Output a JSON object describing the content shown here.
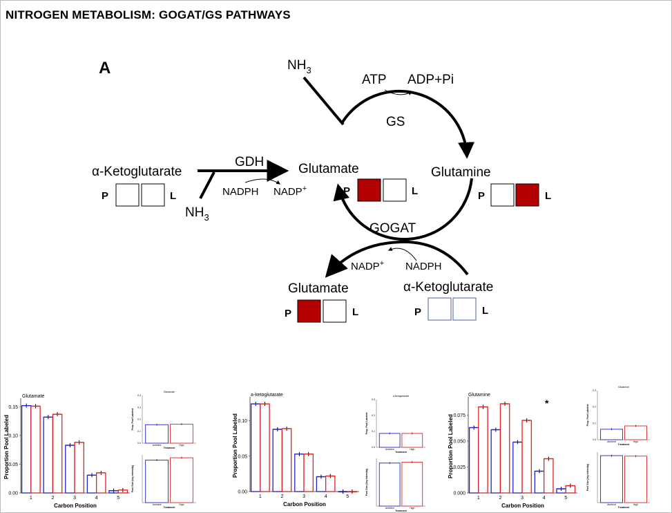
{
  "header": {
    "title": "NITROGEN METABOLISM: GOGAT/GS PATHWAYS"
  },
  "diagram": {
    "panel_label": "A",
    "nh3_top": "NH3",
    "nh3_left": "NH3",
    "atp": "ATP",
    "adp": "ADP+Pi",
    "gs": "GS",
    "gdh": "GDH",
    "nadph_left": "NADPH",
    "nadp_left": "NADP+",
    "gogat": "GOGAT",
    "nadp_bottom": "NADP+",
    "nadph_bottom": "NADPH",
    "akg_left": "α-Ketoglutarate",
    "glutamate_center": "Glutamate",
    "glutamine": "Glutamine",
    "glutamate_bottom": "Glutamate",
    "akg_bottom": "α-Ketoglutarate",
    "p": "P",
    "l": "L",
    "colors": {
      "red_fill": "#b30000",
      "blue_outline": "#4a5fa0"
    }
  },
  "charts": [
    {
      "title": "Glutamate",
      "ylabel": "Proportion Pool Labeled",
      "xlabel": "Carbon Position",
      "yticks": [
        "0.00",
        "0.05",
        "0.10",
        "0.15"
      ],
      "xticks": [
        "1",
        "2",
        "3",
        "4",
        "5"
      ],
      "inset_top_title": "Glutamate",
      "inset_top_ylabel": "Prop. Pool Labeled",
      "inset_top_ticks": [
        "0.4",
        "0.3",
        "0.2",
        "0.1",
        "0.0"
      ],
      "inset_bottom_ylabel": "Pool Size (log intensity)",
      "inset_xlabel": "Treatment",
      "inset_xticks": [
        "Ambient",
        "High"
      ]
    },
    {
      "title": "a-ketoglutarate",
      "ylabel": "Proportion Pool Labeled",
      "xlabel": "Carbon Position",
      "yticks": [
        "0.00",
        "0.05",
        "0.10"
      ],
      "xticks": [
        "1",
        "2",
        "3",
        "4",
        "5"
      ],
      "inset_top_title": "a-ketoglutarate",
      "inset_top_ylabel": "Prop. Pool Labeled",
      "inset_top_ticks": [
        "0.3",
        "0.2",
        "0.1",
        "0.0"
      ],
      "inset_bottom_ylabel": "Pool Size (log intensity)",
      "inset_xlabel": "Treatment",
      "inset_xticks": [
        "Ambient",
        "High"
      ]
    },
    {
      "title": "Glutamine",
      "ylabel": "Proportion Pool Labeled",
      "xlabel": "Carbon Position",
      "yticks": [
        "0.000",
        "0.025",
        "0.050",
        "0.075"
      ],
      "xticks": [
        "1",
        "2",
        "3",
        "4",
        "5"
      ],
      "star": "*",
      "inset_top_title": "Glutamine",
      "inset_top_ylabel": "Prop. Pool Labeled",
      "inset_top_ticks": [
        "0.3",
        "0.2",
        "0.1",
        "0.0"
      ],
      "inset_bottom_ylabel": "Pool Size (log intensity)",
      "inset_xlabel": "Treatment",
      "inset_xticks": [
        "Ambient",
        "High"
      ]
    }
  ],
  "chart_data": [
    {
      "type": "bar",
      "title": "Glutamate",
      "xlabel": "Carbon Position",
      "ylabel": "Proportion Pool Labeled",
      "categories": [
        "1",
        "2",
        "3",
        "4",
        "5"
      ],
      "ylim": [
        0,
        0.16
      ],
      "series": [
        {
          "color": "#1f1fd0",
          "values": [
            0.152,
            0.132,
            0.083,
            0.031,
            0.004
          ]
        },
        {
          "color": "#e02020",
          "values": [
            0.151,
            0.137,
            0.088,
            0.035,
            0.005
          ]
        }
      ],
      "insets": [
        {
          "title": "Glutamate",
          "ylabel": "Prop. Pool Labeled",
          "ylim": [
            0,
            0.42
          ],
          "categories": [
            "Ambient",
            "High"
          ],
          "values": [
            0.4,
            0.41
          ]
        },
        {
          "ylabel": "Pool Size (log intensity)",
          "categories": [
            "Ambient",
            "High"
          ],
          "values": [
            0.92,
            0.97
          ]
        }
      ]
    },
    {
      "type": "bar",
      "title": "a-ketoglutarate",
      "xlabel": "Carbon Position",
      "ylabel": "Proportion Pool Labeled",
      "categories": [
        "1",
        "2",
        "3",
        "4",
        "5"
      ],
      "ylim": [
        0,
        0.13
      ],
      "series": [
        {
          "color": "#1f1fd0",
          "values": [
            0.124,
            0.088,
            0.053,
            0.021,
            0.0
          ]
        },
        {
          "color": "#e02020",
          "values": [
            0.124,
            0.089,
            0.053,
            0.022,
            0.0
          ]
        }
      ],
      "insets": [
        {
          "title": "a-ketoglutarate",
          "ylabel": "Prop. Pool Labeled",
          "ylim": [
            0,
            0.32
          ],
          "categories": [
            "Ambient",
            "High"
          ],
          "values": [
            0.3,
            0.3
          ]
        },
        {
          "ylabel": "Pool Size (log intensity)",
          "categories": [
            "Ambient",
            "High"
          ],
          "values": [
            0.93,
            0.95
          ]
        }
      ]
    },
    {
      "type": "bar",
      "title": "Glutamine",
      "xlabel": "Carbon Position",
      "ylabel": "Proportion Pool Labeled",
      "categories": [
        "1",
        "2",
        "3",
        "4",
        "5"
      ],
      "ylim": [
        0,
        0.09
      ],
      "series": [
        {
          "color": "#1f1fd0",
          "values": [
            0.063,
            0.061,
            0.049,
            0.021,
            0.004
          ]
        },
        {
          "color": "#e02020",
          "values": [
            0.083,
            0.086,
            0.07,
            0.033,
            0.007
          ]
        }
      ],
      "annotation": "*",
      "insets": [
        {
          "title": "Glutamine",
          "ylabel": "Prop. Pool Labeled",
          "ylim": [
            0,
            0.3
          ],
          "categories": [
            "Ambient",
            "High"
          ],
          "values": [
            0.22,
            0.29
          ]
        },
        {
          "ylabel": "Pool Size (log intensity)",
          "categories": [
            "Ambient",
            "High"
          ],
          "values": [
            0.96,
            0.95
          ]
        }
      ]
    }
  ]
}
